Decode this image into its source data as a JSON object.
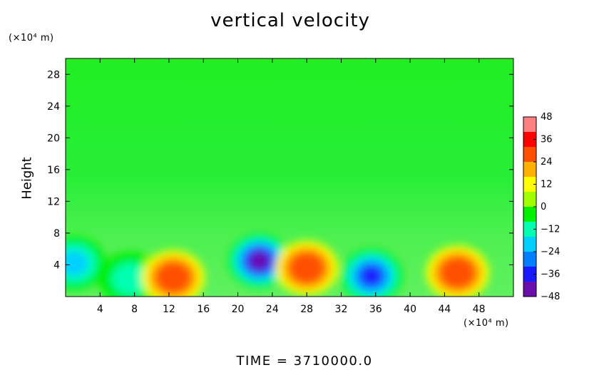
{
  "chart_data": {
    "type": "heatmap",
    "title": "vertical velocity",
    "ylabel": "Height",
    "x_unit_label": "(×10⁴ m)",
    "y_unit_label": "(×10⁴ m)",
    "footer": "TIME  =  3710000.0",
    "xlim": [
      0,
      52
    ],
    "ylim": [
      0,
      30
    ],
    "x_ticks": [
      4,
      8,
      12,
      16,
      20,
      24,
      28,
      32,
      36,
      40,
      44,
      48
    ],
    "y_ticks": [
      4,
      8,
      12,
      16,
      20,
      24,
      28
    ],
    "colorbar": {
      "range": [
        -48,
        48
      ],
      "ticks": [
        48,
        36,
        24,
        12,
        0,
        -12,
        -24,
        -36,
        -48
      ],
      "colors": [
        "#6a0dad",
        "#1a1aff",
        "#0080ff",
        "#00d0ff",
        "#00ffb0",
        "#00f000",
        "#a0ff00",
        "#ffff00",
        "#ffb000",
        "#ff5000",
        "#ff0000",
        "#ff8080"
      ]
    },
    "background_value": 1,
    "features": [
      {
        "x": 1.0,
        "y": 4.2,
        "value": -22
      },
      {
        "x": 7.5,
        "y": 2.2,
        "value": -16
      },
      {
        "x": 12.5,
        "y": 2.4,
        "value": 30
      },
      {
        "x": 22.5,
        "y": 4.5,
        "value": -42
      },
      {
        "x": 28.0,
        "y": 3.6,
        "value": 26
      },
      {
        "x": 35.5,
        "y": 2.6,
        "value": -40
      },
      {
        "x": 45.5,
        "y": 3.0,
        "value": 26
      }
    ]
  }
}
